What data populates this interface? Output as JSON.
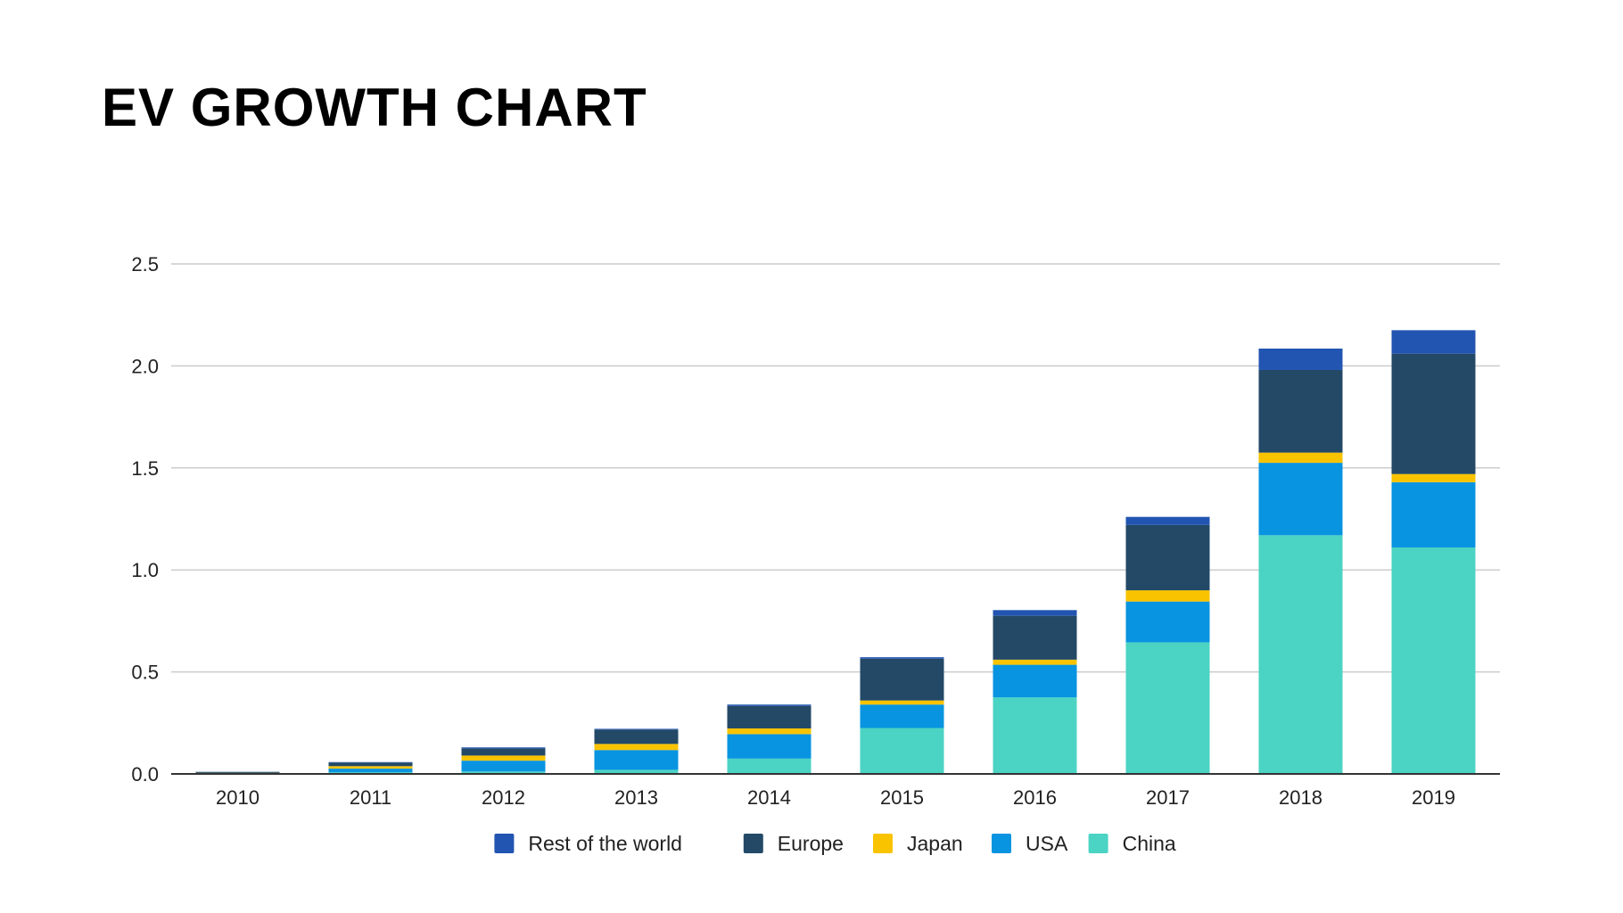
{
  "chart_data": {
    "type": "bar",
    "stacked": true,
    "title": "EV GROWTH CHART",
    "xlabel": "",
    "ylabel": "",
    "ylim": [
      0,
      2.5
    ],
    "yticks": [
      "0.0",
      "0.5",
      "1.0",
      "1.5",
      "2.0",
      "2.5"
    ],
    "yticks_values": [
      0,
      0.5,
      1.0,
      1.5,
      2.0,
      2.5
    ],
    "grid": true,
    "legend_position": "bottom",
    "categories": [
      "2010",
      "2011",
      "2012",
      "2013",
      "2014",
      "2015",
      "2016",
      "2017",
      "2018",
      "2019"
    ],
    "series": [
      {
        "name": "China",
        "color": "#4BD3C3",
        "values": [
          0.002,
          0.008,
          0.012,
          0.02,
          0.075,
          0.225,
          0.375,
          0.645,
          1.17,
          1.11
        ]
      },
      {
        "name": "USA",
        "color": "#0894E0",
        "values": [
          0.002,
          0.018,
          0.053,
          0.097,
          0.12,
          0.115,
          0.16,
          0.2,
          0.355,
          0.32
        ]
      },
      {
        "name": "Japan",
        "color": "#F9C300",
        "values": [
          0.001,
          0.012,
          0.025,
          0.03,
          0.028,
          0.02,
          0.025,
          0.055,
          0.05,
          0.04
        ]
      },
      {
        "name": "Europe",
        "color": "#234967",
        "values": [
          0.005,
          0.018,
          0.035,
          0.07,
          0.11,
          0.205,
          0.215,
          0.32,
          0.405,
          0.59
        ]
      },
      {
        "name": "Rest of the world",
        "color": "#2255B1",
        "values": [
          0.0,
          0.002,
          0.005,
          0.004,
          0.007,
          0.007,
          0.028,
          0.04,
          0.105,
          0.115
        ]
      }
    ],
    "legend_order": [
      "Rest of the world",
      "Europe",
      "Japan",
      "USA",
      "China"
    ]
  }
}
